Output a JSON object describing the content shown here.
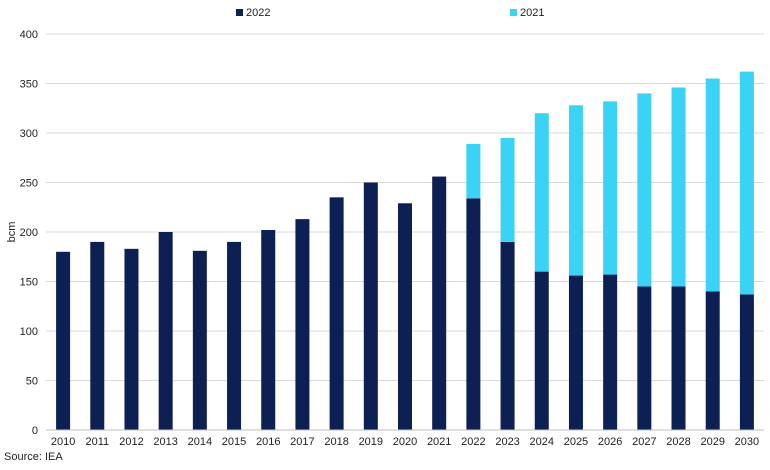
{
  "chart_data": {
    "type": "bar",
    "stacked": true,
    "categories": [
      "2010",
      "2011",
      "2012",
      "2013",
      "2014",
      "2015",
      "2016",
      "2017",
      "2018",
      "2019",
      "2020",
      "2021",
      "2022",
      "2023",
      "2024",
      "2025",
      "2026",
      "2027",
      "2028",
      "2029",
      "2030"
    ],
    "series": [
      {
        "name": "2022",
        "color": "#0c2054",
        "values": [
          180,
          190,
          183,
          200,
          181,
          190,
          202,
          213,
          235,
          250,
          229,
          256,
          234,
          190,
          160,
          156,
          157,
          145,
          145,
          140,
          137
        ]
      },
      {
        "name": "2021",
        "color": "#3bd3f5",
        "values": [
          0,
          0,
          0,
          0,
          0,
          0,
          0,
          0,
          0,
          0,
          0,
          0,
          55,
          105,
          160,
          172,
          175,
          195,
          201,
          215,
          225
        ]
      }
    ],
    "ylabel": "bcm",
    "ylim": [
      0,
      400
    ],
    "yticks": [
      0,
      50,
      100,
      150,
      200,
      250,
      300,
      350,
      400
    ],
    "grid": true,
    "legend_position": "top-center"
  },
  "source": "Source: IEA"
}
